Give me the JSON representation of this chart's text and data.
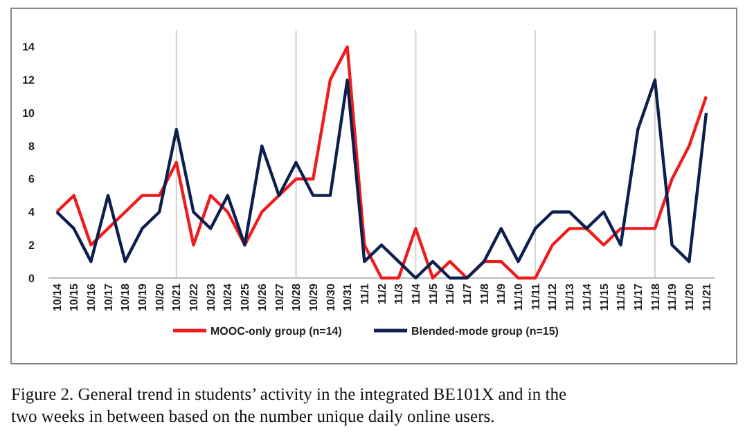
{
  "chart_data": {
    "type": "line",
    "categories": [
      "10/14",
      "10/15",
      "10/16",
      "10/17",
      "10/18",
      "10/19",
      "10/20",
      "10/21",
      "10/22",
      "10/23",
      "10/24",
      "10/25",
      "10/26",
      "10/27",
      "10/28",
      "10/29",
      "10/30",
      "10/31",
      "11/1",
      "11/2",
      "11/3",
      "11/4",
      "11/5",
      "11/6",
      "11/7",
      "11/8",
      "11/9",
      "11/10",
      "11/11",
      "11/12",
      "11/13",
      "11/14",
      "11/15",
      "11/16",
      "11/17",
      "11/18",
      "11/19",
      "11/20",
      "11/21"
    ],
    "series": [
      {
        "name": "MOOC-only group (n=14)",
        "color": "#ee1c1c",
        "values": [
          4,
          5,
          2,
          3,
          4,
          5,
          5,
          7,
          2,
          5,
          4,
          2,
          4,
          5,
          6,
          6,
          12,
          14,
          2,
          0,
          0,
          3,
          0,
          1,
          0,
          1,
          1,
          0,
          0,
          2,
          3,
          3,
          2,
          3,
          3,
          3,
          6,
          8,
          11
        ]
      },
      {
        "name": "Blended-mode group (n=15)",
        "color": "#0d1f4f",
        "values": [
          4,
          3,
          1,
          5,
          1,
          3,
          4,
          9,
          4,
          3,
          5,
          2,
          8,
          5,
          7,
          5,
          5,
          12,
          1,
          2,
          1,
          0,
          1,
          0,
          0,
          1,
          3,
          1,
          3,
          4,
          4,
          3,
          4,
          2,
          9,
          12,
          2,
          1,
          10
        ]
      }
    ],
    "ylim": [
      0,
      15
    ],
    "yticks": [
      0,
      2,
      4,
      6,
      8,
      10,
      12,
      14
    ],
    "ref_lines": [
      {
        "axis": "x",
        "value": "10/21",
        "color": "#d0d0d0"
      },
      {
        "axis": "x",
        "value": "10/28",
        "color": "#d0d0d0"
      },
      {
        "axis": "x",
        "value": "11/4",
        "color": "#d0d0d0"
      },
      {
        "axis": "x",
        "value": "11/11",
        "color": "#d0d0d0"
      },
      {
        "axis": "x",
        "value": "11/18",
        "color": "#d0d0d0"
      }
    ],
    "legend": "bottom",
    "marker": "none",
    "line_style": "solid",
    "annotations": [
      "Figure 2. General trend in students’ activity in the integrated BE101X and in the two weeks in between based on the number unique daily online users."
    ]
  }
}
